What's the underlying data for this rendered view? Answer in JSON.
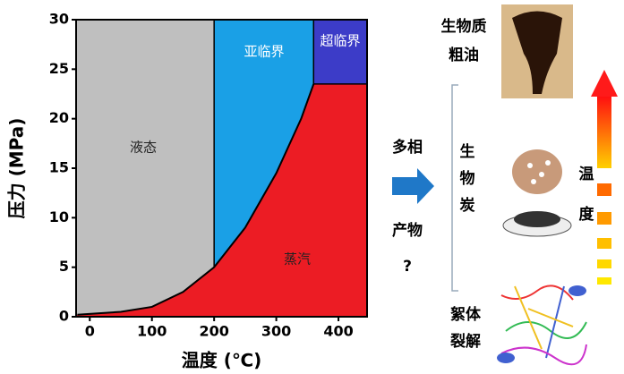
{
  "chart_data": {
    "type": "phase",
    "xlabel": "温度 (℃)",
    "ylabel": "压力 (MPa)",
    "xlim": [
      -22,
      446
    ],
    "ylim": [
      0,
      30
    ],
    "xticks": [
      0,
      100,
      200,
      300,
      400
    ],
    "yticks": [
      0,
      5,
      10,
      15,
      20,
      25,
      30
    ],
    "boundary": {
      "x": [
        -20,
        50,
        100,
        150,
        200,
        250,
        300,
        340,
        360
      ],
      "y": [
        0.2,
        0.5,
        1,
        2.5,
        5,
        9,
        14.5,
        20,
        23.5
      ]
    },
    "regions": [
      {
        "name": "液态",
        "color": "#bfbfbf"
      },
      {
        "name": "亚临界",
        "color": "#1aa0e6"
      },
      {
        "name": "超临界",
        "color": "#3c3cc8"
      },
      {
        "name": "蒸汽",
        "color": "#ec1c24"
      }
    ]
  },
  "panel": {
    "oil": [
      "生物质",
      "粗油"
    ],
    "products": [
      "多相",
      "产物",
      "?"
    ],
    "char": [
      "生",
      "物",
      "炭"
    ],
    "floc": [
      "絮体",
      "裂解"
    ],
    "temperature": [
      "温",
      "度"
    ]
  }
}
